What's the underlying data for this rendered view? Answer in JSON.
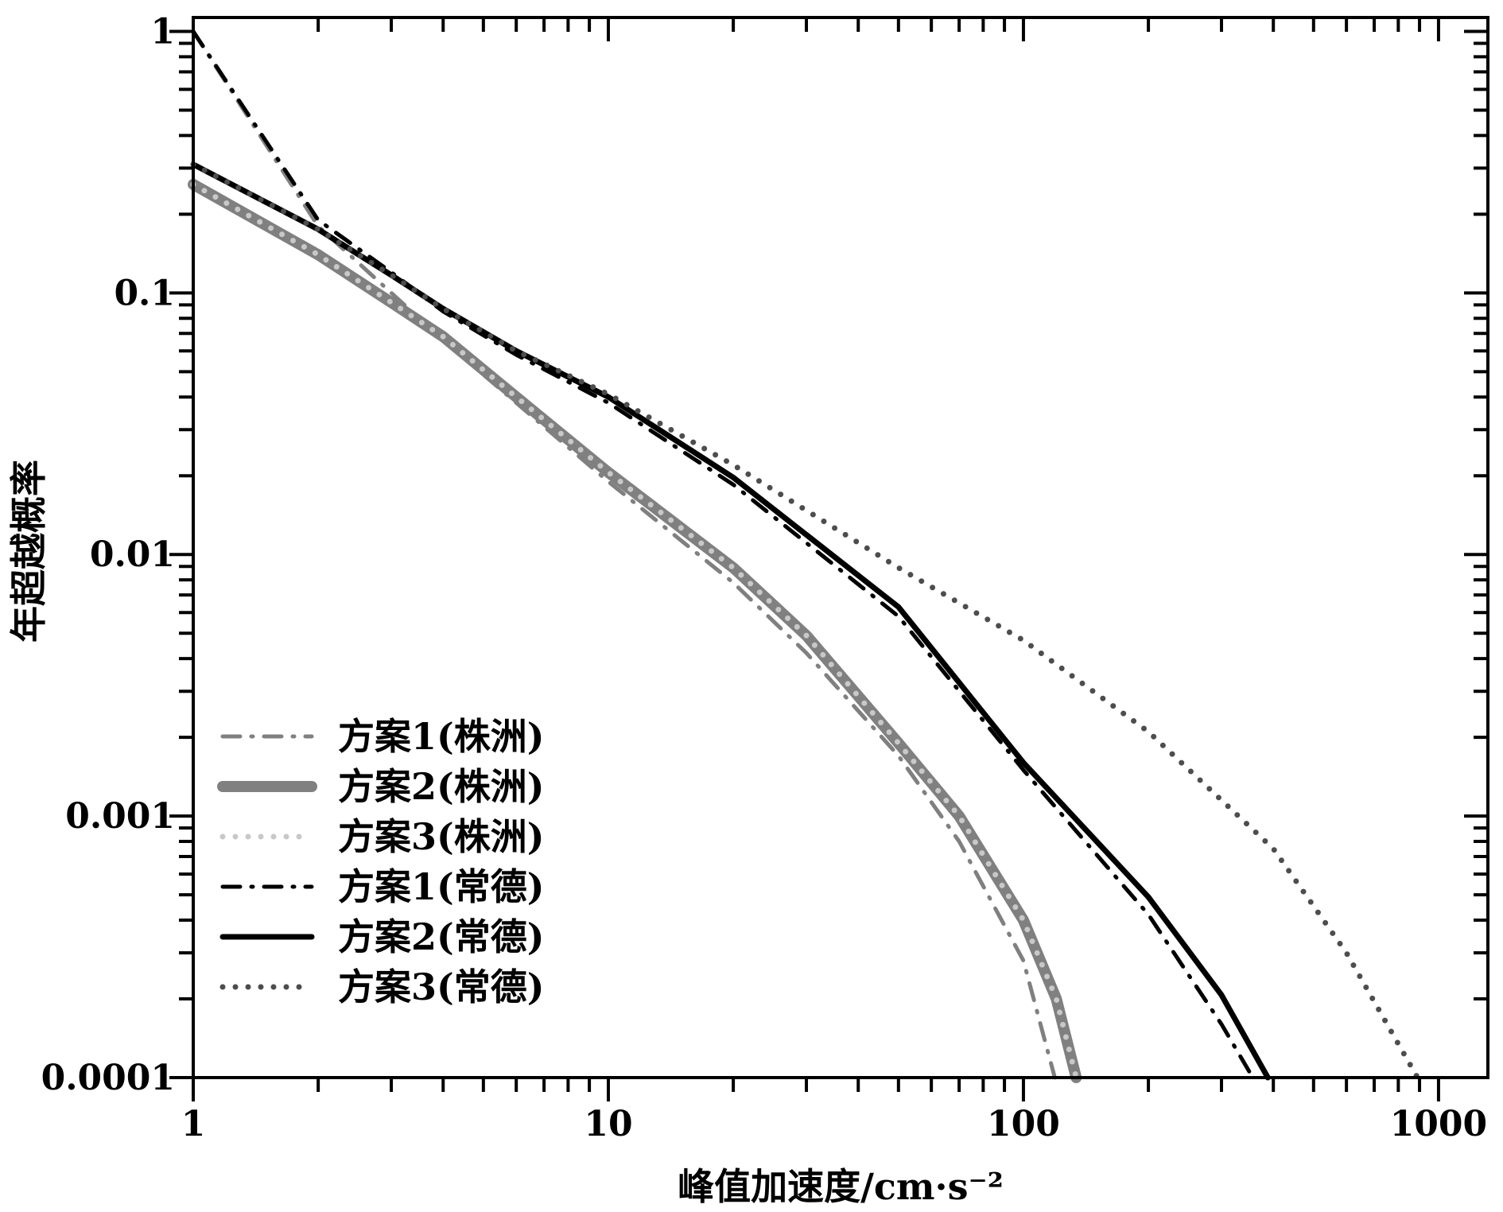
{
  "chart_data": {
    "type": "line",
    "title": "",
    "xlabel": "峰值加速度/cm·s⁻²",
    "ylabel": "年超越概率",
    "xscale": "log",
    "yscale": "log",
    "xlim": [
      1,
      1315
    ],
    "ylim": [
      0.0001,
      1.13
    ],
    "xticks": [
      1,
      10,
      100,
      1000
    ],
    "xtick_labels": [
      "1",
      "10",
      "100",
      "1000"
    ],
    "yticks": [
      1,
      0.1,
      0.01,
      0.001,
      0.0001
    ],
    "ytick_labels": [
      "1",
      "0.1",
      "0.01",
      "0.001",
      "0.0001"
    ],
    "grid": false,
    "legend_position": "lower-left",
    "series": [
      {
        "name": "方案1(株洲)",
        "color": "#808080",
        "style": "dashdot",
        "width": 5,
        "x": [
          1,
          2,
          3,
          4,
          6,
          10,
          20,
          30,
          50,
          70,
          100,
          119
        ],
        "y": [
          1.0,
          0.18,
          0.1,
          0.066,
          0.038,
          0.019,
          0.0078,
          0.0042,
          0.0017,
          0.0008,
          0.00028,
          0.0001
        ]
      },
      {
        "name": "方案2(株洲)",
        "color": "#808080",
        "style": "solid",
        "width": 14,
        "x": [
          1,
          2,
          3,
          4,
          6,
          10,
          20,
          30,
          50,
          70,
          100,
          120,
          134
        ],
        "y": [
          0.26,
          0.14,
          0.092,
          0.068,
          0.04,
          0.0206,
          0.0089,
          0.0049,
          0.0019,
          0.001,
          0.0004,
          0.0002,
          0.0001
        ]
      },
      {
        "name": "方案3(株洲)",
        "color": "#c8c8c8",
        "style": "dotted",
        "width": 7,
        "x": [
          1,
          2,
          3,
          4,
          6,
          10,
          20,
          30,
          50,
          70,
          100,
          120,
          134
        ],
        "y": [
          0.26,
          0.14,
          0.092,
          0.068,
          0.04,
          0.0206,
          0.0089,
          0.0049,
          0.0019,
          0.001,
          0.0004,
          0.0002,
          0.0001
        ]
      },
      {
        "name": "方案1(常德)",
        "color": "#000000",
        "style": "dashdot",
        "width": 5,
        "x": [
          1,
          2,
          3,
          4,
          6,
          10,
          20,
          50,
          100,
          200,
          300,
          357
        ],
        "y": [
          1.0,
          0.19,
          0.12,
          0.085,
          0.058,
          0.038,
          0.0185,
          0.0058,
          0.0015,
          0.00042,
          0.00016,
          0.0001
        ]
      },
      {
        "name": "方案2(常德)",
        "color": "#000000",
        "style": "solid",
        "width": 7,
        "x": [
          1,
          2,
          3,
          4,
          6,
          10,
          20,
          50,
          100,
          200,
          300,
          388
        ],
        "y": [
          0.31,
          0.175,
          0.117,
          0.087,
          0.06,
          0.04,
          0.0197,
          0.0063,
          0.0016,
          0.00049,
          0.000207,
          0.0001
        ]
      },
      {
        "name": "方案3(常德)",
        "color": "#4d4d4d",
        "style": "dotted",
        "width": 7,
        "x": [
          1,
          2,
          3,
          4,
          6,
          10,
          20,
          50,
          100,
          200,
          400,
          600,
          890
        ],
        "y": [
          0.31,
          0.175,
          0.117,
          0.087,
          0.06,
          0.041,
          0.022,
          0.0089,
          0.0047,
          0.0021,
          0.00075,
          0.0003,
          0.0001
        ]
      }
    ]
  }
}
